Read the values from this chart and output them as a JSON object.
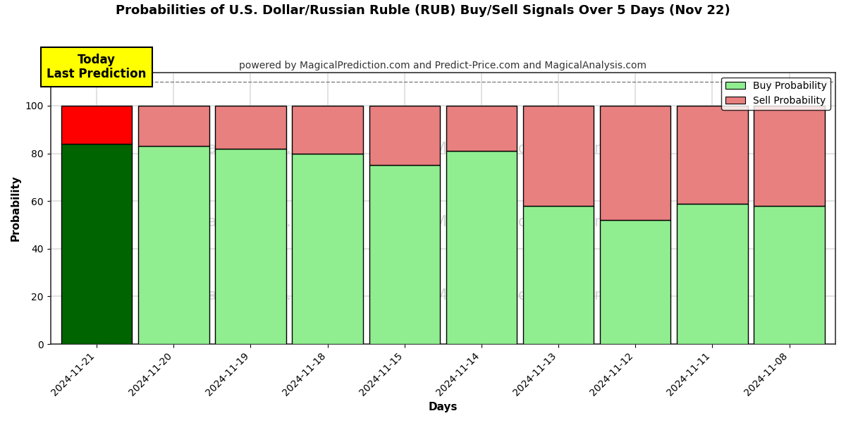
{
  "title": "Probabilities of U.S. Dollar/Russian Ruble (RUB) Buy/Sell Signals Over 5 Days (Nov 22)",
  "subtitle": "powered by MagicalPrediction.com and Predict-Price.com and MagicalAnalysis.com",
  "xlabel": "Days",
  "ylabel": "Probability",
  "dates": [
    "2024-11-21",
    "2024-11-20",
    "2024-11-19",
    "2024-11-18",
    "2024-11-15",
    "2024-11-14",
    "2024-11-13",
    "2024-11-12",
    "2024-11-11",
    "2024-11-08"
  ],
  "buy_values": [
    84,
    83,
    82,
    80,
    75,
    81,
    58,
    52,
    59,
    58
  ],
  "sell_values": [
    16,
    17,
    18,
    20,
    25,
    19,
    42,
    48,
    41,
    42
  ],
  "buy_color_today": "#006400",
  "sell_color_today": "#FF0000",
  "buy_color_rest": "#90EE90",
  "sell_color_rest": "#E88080",
  "edgecolor": "#000000",
  "ylim": [
    0,
    114
  ],
  "yticks": [
    0,
    20,
    40,
    60,
    80,
    100
  ],
  "dashed_line_y": 110,
  "watermark_color": "#d0d0d0",
  "today_box_color": "#FFFF00",
  "today_label": "Today\nLast Prediction",
  "legend_buy_label": "Buy Probability",
  "legend_sell_label": "Sell Probability",
  "background_color": "#ffffff",
  "plot_bg_color": "#ffffff",
  "grid_color": "#dddddd",
  "title_fontsize": 13,
  "subtitle_fontsize": 10,
  "axis_label_fontsize": 11,
  "tick_fontsize": 10,
  "bar_width": 0.92
}
